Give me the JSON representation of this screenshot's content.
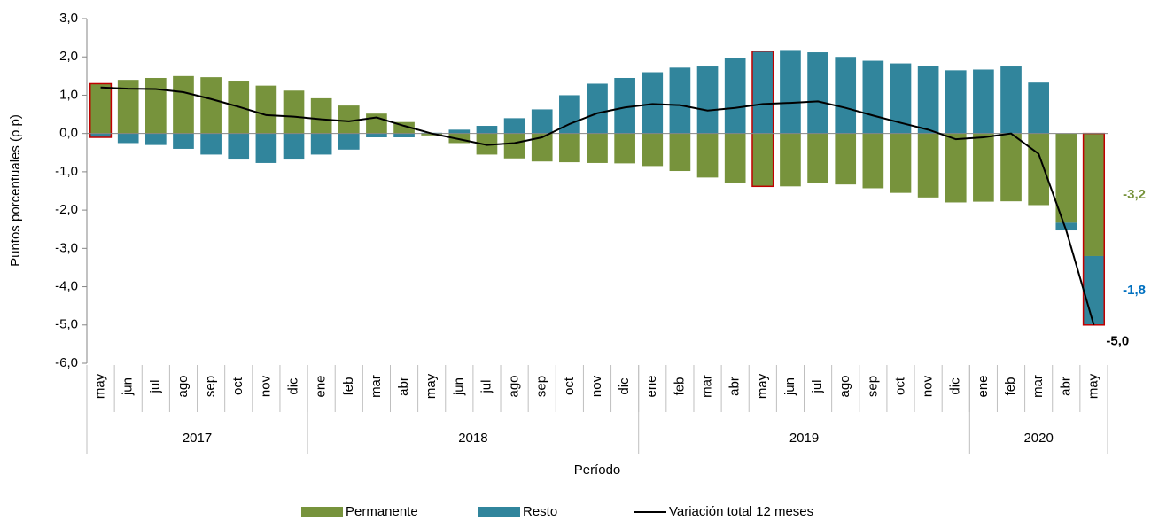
{
  "chart_data": {
    "type": "stacked_bar_line",
    "y_axis_label": "Puntos porcentuales (p.p)",
    "x_axis_label": "Período",
    "categories": [
      "may",
      "jun",
      "jul",
      "ago",
      "sep",
      "oct",
      "nov",
      "dic",
      "ene",
      "feb",
      "mar",
      "abr",
      "may",
      "jun",
      "jul",
      "ago",
      "sep",
      "oct",
      "nov",
      "dic",
      "ene",
      "feb",
      "mar",
      "abr",
      "may",
      "jun",
      "jul",
      "ago",
      "sep",
      "oct",
      "nov",
      "dic",
      "ene",
      "feb",
      "mar",
      "abr",
      "may"
    ],
    "category_groups": [
      {
        "label": "2017",
        "count": 8
      },
      {
        "label": "2018",
        "count": 12
      },
      {
        "label": "2019",
        "count": 12
      },
      {
        "label": "2020",
        "count": 5
      }
    ],
    "series": [
      {
        "name": "Permanente",
        "kind": "bar",
        "color": "#77933c",
        "values": [
          1.3,
          1.4,
          1.45,
          1.5,
          1.47,
          1.38,
          1.25,
          1.12,
          0.92,
          0.73,
          0.52,
          0.3,
          -0.05,
          -0.25,
          -0.55,
          -0.65,
          -0.73,
          -0.75,
          -0.77,
          -0.78,
          -0.85,
          -0.98,
          -1.15,
          -1.28,
          -1.38,
          -1.38,
          -1.28,
          -1.33,
          -1.43,
          -1.55,
          -1.67,
          -1.8,
          -1.78,
          -1.77,
          -1.87,
          -2.33,
          -3.2
        ],
        "value_labels": [
          null,
          null,
          null,
          null,
          null,
          null,
          null,
          null,
          null,
          null,
          null,
          null,
          null,
          null,
          null,
          null,
          null,
          null,
          null,
          null,
          null,
          null,
          null,
          null,
          null,
          null,
          null,
          null,
          null,
          null,
          null,
          null,
          null,
          null,
          null,
          null,
          "-3,2"
        ],
        "label_color": "#77933c"
      },
      {
        "name": "Resto",
        "kind": "bar",
        "color": "#31859c",
        "values": [
          -0.1,
          -0.25,
          -0.3,
          -0.4,
          -0.55,
          -0.68,
          -0.77,
          -0.68,
          -0.55,
          -0.42,
          -0.1,
          -0.1,
          0.02,
          0.1,
          0.2,
          0.4,
          0.63,
          1.0,
          1.3,
          1.45,
          1.6,
          1.72,
          1.75,
          1.97,
          2.15,
          2.18,
          2.12,
          2.0,
          1.9,
          1.83,
          1.77,
          1.65,
          1.67,
          1.75,
          1.33,
          -0.2,
          -1.8
        ],
        "value_labels": [
          null,
          null,
          null,
          null,
          null,
          null,
          null,
          null,
          null,
          null,
          null,
          null,
          null,
          null,
          null,
          null,
          null,
          null,
          null,
          null,
          null,
          null,
          null,
          null,
          null,
          null,
          null,
          null,
          null,
          null,
          null,
          null,
          null,
          null,
          null,
          null,
          "-1,8"
        ],
        "label_color": "#0070c0"
      },
      {
        "name": "Variación total 12 meses",
        "kind": "line",
        "color": "#000000",
        "values": [
          1.2,
          1.17,
          1.16,
          1.08,
          0.9,
          0.7,
          0.48,
          0.44,
          0.37,
          0.32,
          0.42,
          0.2,
          0.0,
          -0.15,
          -0.3,
          -0.25,
          -0.1,
          0.25,
          0.53,
          0.68,
          0.77,
          0.74,
          0.6,
          0.67,
          0.77,
          0.8,
          0.84,
          0.67,
          0.47,
          0.28,
          0.1,
          -0.15,
          -0.1,
          0.0,
          -0.53,
          -2.53,
          -5.0
        ],
        "value_labels": [
          null,
          null,
          null,
          null,
          null,
          null,
          null,
          null,
          null,
          null,
          null,
          null,
          null,
          null,
          null,
          null,
          null,
          null,
          null,
          null,
          null,
          null,
          null,
          null,
          null,
          null,
          null,
          null,
          null,
          null,
          null,
          null,
          null,
          null,
          null,
          null,
          "-5,0"
        ],
        "label_color": "#000000"
      }
    ],
    "highlighted_categories": [
      0,
      24,
      36
    ],
    "highlight_color": "#c00000",
    "ylim": [
      -6,
      3
    ],
    "yticks": [
      {
        "value": -6,
        "label": "-6,0"
      },
      {
        "value": -5,
        "label": "-5,0"
      },
      {
        "value": -4,
        "label": "-4,0"
      },
      {
        "value": -3,
        "label": "-3,0"
      },
      {
        "value": -2,
        "label": "-2,0"
      },
      {
        "value": -1,
        "label": "-1,0"
      },
      {
        "value": 0,
        "label": "0,0"
      },
      {
        "value": 1,
        "label": "1,0"
      },
      {
        "value": 2,
        "label": "2,0"
      },
      {
        "value": 3,
        "label": "3,0"
      }
    ],
    "grid": false,
    "legend": "bottom"
  }
}
